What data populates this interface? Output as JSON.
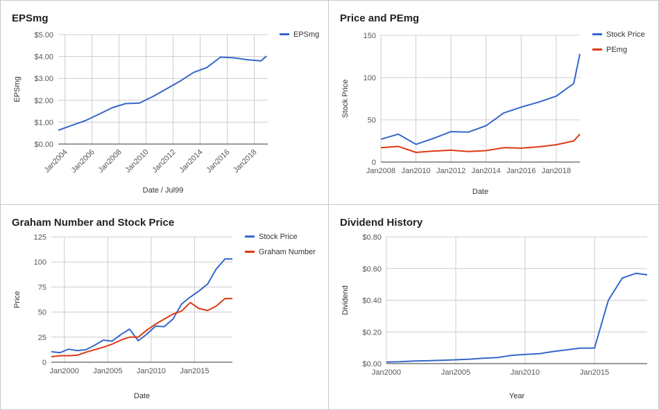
{
  "colors": {
    "blue": "#3366cc",
    "red": "#dc3912",
    "grid": "#cccccc",
    "axis": "#333333"
  },
  "chart_data": [
    {
      "type": "line",
      "title": "EPSmg",
      "xlabel": "Date / Jul99",
      "ylabel": "EPSmg",
      "xlim": [
        2003.5,
        2019.0
      ],
      "ylim": [
        0,
        5
      ],
      "yticks": [
        "$0.00",
        "$1.00",
        "$2.00",
        "$3.00",
        "$4.00",
        "$5.00"
      ],
      "xticks": [
        "Jan2004",
        "Jan2006",
        "Jan2008",
        "Jan2010",
        "Jan2012",
        "Jan2014",
        "Jan2016",
        "Jan2018"
      ],
      "legend_position": "right",
      "grid": true,
      "series": [
        {
          "name": "EPSmg",
          "color": "blue",
          "x": [
            2003.5,
            2004.5,
            2005.5,
            2006.5,
            2007.5,
            2008.5,
            2009.5,
            2010.5,
            2011.5,
            2012.5,
            2013.5,
            2014.5,
            2015.5,
            2016.5,
            2017.5,
            2018.5,
            2018.9
          ],
          "y": [
            0.63,
            0.85,
            1.07,
            1.36,
            1.66,
            1.85,
            1.87,
            2.17,
            2.52,
            2.87,
            3.27,
            3.5,
            3.97,
            3.94,
            3.85,
            3.8,
            4.02
          ]
        }
      ]
    },
    {
      "type": "line",
      "title": "Price and PEmg",
      "xlabel": "Date",
      "ylabel": "Stock Price",
      "xlim": [
        2008.0,
        2019.35
      ],
      "ylim": [
        0,
        150
      ],
      "yticks": [
        "0",
        "50",
        "100",
        "150"
      ],
      "xticks": [
        "Jan2008",
        "Jan2010",
        "Jan2012",
        "Jan2014",
        "Jan2016",
        "Jan2018"
      ],
      "legend_position": "right",
      "grid": true,
      "series": [
        {
          "name": "Stock Price",
          "color": "blue",
          "x": [
            2008.0,
            2009.0,
            2010.0,
            2011.0,
            2012.0,
            2013.0,
            2014.0,
            2015.0,
            2016.0,
            2017.0,
            2018.0,
            2019.0,
            2019.35
          ],
          "y": [
            27,
            33,
            21,
            28,
            36,
            35.5,
            43,
            58,
            65,
            71,
            78,
            93,
            128
          ]
        },
        {
          "name": "PEmg",
          "color": "red",
          "x": [
            2008.0,
            2009.0,
            2010.0,
            2011.0,
            2012.0,
            2013.0,
            2014.0,
            2015.0,
            2016.0,
            2017.0,
            2018.0,
            2019.0,
            2019.35
          ],
          "y": [
            17,
            18.5,
            11.5,
            13,
            14,
            12.5,
            13.5,
            17,
            16.5,
            18,
            20.5,
            25,
            33
          ]
        }
      ]
    },
    {
      "type": "line",
      "title": "Graham Number and Stock Price",
      "xlabel": "Date",
      "ylabel": "Price",
      "xlim": [
        1998.5,
        2019.35
      ],
      "ylim": [
        0,
        125
      ],
      "yticks": [
        "0",
        "25",
        "50",
        "75",
        "100",
        "125"
      ],
      "xticks": [
        "Jan2000",
        "Jan2005",
        "Jan2010",
        "Jan2015"
      ],
      "legend_position": "right",
      "grid": true,
      "series": [
        {
          "name": "Stock Price",
          "color": "blue",
          "x": [
            1998.5,
            1999.5,
            2000.5,
            2001.5,
            2002.5,
            2003.5,
            2004.5,
            2005.5,
            2006.5,
            2007.5,
            2008.5,
            2009.5,
            2010.5,
            2011.5,
            2012.5,
            2013.5,
            2014.5,
            2015.5,
            2016.5,
            2017.5,
            2018.5,
            2019.35
          ],
          "y": [
            10.5,
            9.5,
            13,
            11.5,
            12.5,
            17,
            22,
            21,
            27.5,
            33,
            21.5,
            28,
            36,
            35.5,
            43,
            58,
            65,
            71,
            78,
            93,
            103,
            103
          ]
        },
        {
          "name": "Graham Number",
          "color": "red",
          "x": [
            1998.5,
            1999.5,
            2000.5,
            2001.5,
            2002.5,
            2003.5,
            2004.5,
            2005.5,
            2006.5,
            2007.5,
            2008.5,
            2009.5,
            2010.5,
            2011.5,
            2012.5,
            2013.5,
            2014.5,
            2015.5,
            2016.5,
            2017.5,
            2018.5,
            2019.35
          ],
          "y": [
            5.5,
            6.5,
            6.5,
            7,
            10,
            12.5,
            15,
            18,
            22,
            25,
            25,
            32,
            38,
            43,
            48,
            51,
            59.5,
            53.5,
            51.5,
            56,
            63.5,
            63.5
          ]
        }
      ]
    },
    {
      "type": "line",
      "title": "Dividend History",
      "xlabel": "Year",
      "ylabel": "Dividend",
      "xlim": [
        2000.0,
        2018.8
      ],
      "ylim": [
        0,
        0.8
      ],
      "yticks": [
        "$0.00",
        "$0.20",
        "$0.40",
        "$0.60",
        "$0.80"
      ],
      "xticks": [
        "Jan2000",
        "Jan2005",
        "Jan2010",
        "Jan2015"
      ],
      "legend_position": "none",
      "grid": true,
      "series": [
        {
          "name": "",
          "color": "blue",
          "x": [
            2000,
            2001,
            2002,
            2003,
            2004,
            2005,
            2006,
            2007,
            2008,
            2009,
            2010,
            2011,
            2012,
            2013,
            2014,
            2015,
            2016,
            2017,
            2018,
            2018.8
          ],
          "y": [
            0.01,
            0.012,
            0.016,
            0.018,
            0.021,
            0.024,
            0.028,
            0.034,
            0.038,
            0.052,
            0.058,
            0.062,
            0.076,
            0.087,
            0.098,
            0.098,
            0.4,
            0.54,
            0.57,
            0.56
          ]
        }
      ]
    }
  ]
}
